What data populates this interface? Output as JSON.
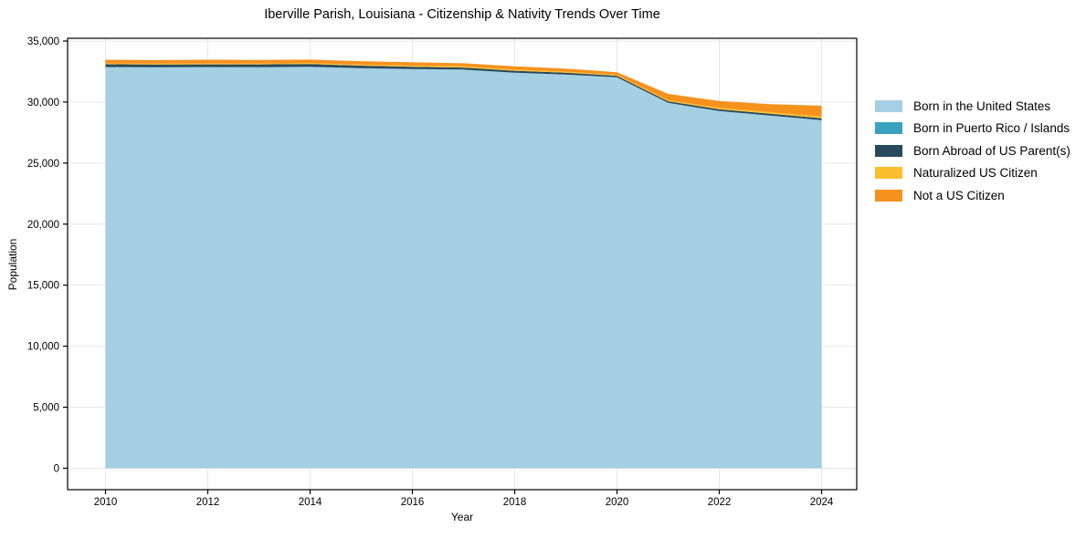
{
  "title": "Iberville Parish, Louisiana - Citizenship & Nativity Trends Over Time",
  "chart_data": {
    "type": "area",
    "stacked": true,
    "title": "Iberville Parish, Louisiana - Citizenship & Nativity Trends Over Time",
    "xlabel": "Year",
    "ylabel": "Population",
    "x": [
      2010,
      2011,
      2012,
      2013,
      2014,
      2015,
      2016,
      2017,
      2018,
      2019,
      2020,
      2021,
      2022,
      2023,
      2024
    ],
    "series": [
      {
        "name": "Born in the United States",
        "color": "#a5cfe2",
        "values": [
          32860,
          32840,
          32860,
          32850,
          32880,
          32770,
          32700,
          32660,
          32400,
          32250,
          32020,
          29930,
          29260,
          28890,
          28510
        ]
      },
      {
        "name": "Born in Puerto Rico / Islands",
        "color": "#3aa1bf",
        "values": [
          10,
          10,
          10,
          10,
          10,
          10,
          10,
          5,
          5,
          5,
          5,
          5,
          5,
          5,
          5
        ]
      },
      {
        "name": "Born Abroad of US Parent(s)",
        "color": "#28495c",
        "values": [
          225,
          220,
          220,
          225,
          230,
          205,
          185,
          160,
          160,
          150,
          125,
          130,
          140,
          150,
          160
        ]
      },
      {
        "name": "Naturalized US Citizen",
        "color": "#fbbf2d",
        "values": [
          70,
          70,
          75,
          70,
          65,
          80,
          90,
          95,
          90,
          85,
          75,
          90,
          120,
          130,
          150
        ]
      },
      {
        "name": "Not a US Citizen",
        "color": "#f5921e",
        "values": [
          300,
          295,
          305,
          295,
          290,
          285,
          280,
          255,
          265,
          255,
          220,
          520,
          560,
          650,
          880
        ]
      }
    ],
    "x_ticks": [
      2010,
      2012,
      2014,
      2016,
      2018,
      2020,
      2022,
      2024
    ],
    "y_ticks": [
      0,
      5000,
      10000,
      15000,
      20000,
      25000,
      30000,
      35000
    ],
    "y_tick_labels": [
      "0",
      "5,000",
      "10,000",
      "15,000",
      "20,000",
      "25,000",
      "30,000",
      "35,000"
    ],
    "ylim": [
      0,
      35000
    ],
    "grid": true,
    "legend_position": "right"
  },
  "colors": {
    "grid": "#e7e7e7",
    "axis": "#000000",
    "background": "#ffffff"
  }
}
